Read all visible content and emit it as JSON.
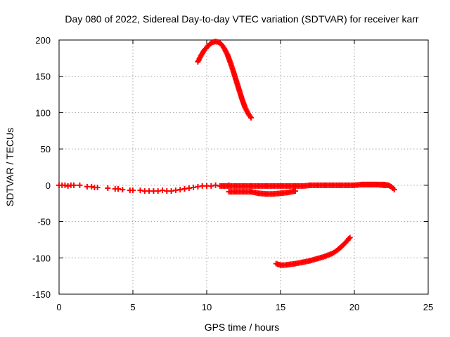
{
  "chart_data": {
    "type": "scatter",
    "title": "Day 080 of 2022, Sidereal Day-to-day VTEC variation (SDTVAR) for receiver karr",
    "xlabel": "GPS time / hours",
    "ylabel": "SDTVAR / TECUs",
    "xlim": [
      0,
      25
    ],
    "ylim": [
      -150,
      200
    ],
    "xticks": [
      0,
      5,
      10,
      15,
      20,
      25
    ],
    "yticks": [
      -150,
      -100,
      -50,
      0,
      50,
      100,
      150,
      200
    ],
    "grid": true,
    "marker": "+",
    "color": "#ff0000",
    "series": [
      {
        "name": "arc-near-zero-early",
        "x": [
          0.0,
          0.2,
          0.4,
          0.6,
          0.8,
          1.0,
          1.4,
          1.9,
          2.2,
          2.4,
          2.6,
          3.3,
          3.8,
          4.0,
          4.3,
          4.8,
          5.0,
          5.5,
          5.8,
          6.1,
          6.4,
          6.7,
          7.0,
          7.3,
          7.6,
          7.9,
          8.2,
          8.5,
          8.8,
          9.1,
          9.4,
          9.7,
          10.0,
          10.3,
          10.6,
          10.9,
          11.2,
          11.5
        ],
        "y": [
          0,
          0,
          0,
          -1,
          0,
          0,
          0,
          -2,
          -2,
          -3,
          -3,
          -4,
          -5,
          -5,
          -6,
          -7,
          -7,
          -7,
          -8,
          -8,
          -8,
          -8,
          -7,
          -8,
          -8,
          -7,
          -6,
          -5,
          -4,
          -3,
          -2,
          -1,
          -1,
          -1,
          0,
          -1,
          -1,
          0
        ]
      },
      {
        "name": "arc-near-zero-mid",
        "x": [
          11.0,
          11.4,
          11.8,
          12.2,
          12.6,
          13.0,
          13.4,
          13.8,
          14.2,
          14.6,
          15.0,
          15.4,
          15.8,
          16.2,
          16.6,
          17.0,
          17.5,
          18.0,
          18.5,
          19.0,
          19.5,
          20.0,
          20.5,
          21.0,
          21.5,
          22.0,
          22.3
        ],
        "y": [
          -1,
          -1,
          -1,
          -1,
          -1,
          -1,
          -1,
          -1,
          -1,
          -1,
          -1,
          -1,
          -1,
          -1,
          -1,
          0,
          0,
          0,
          0,
          0,
          0,
          0,
          1,
          1,
          1,
          0,
          0
        ]
      },
      {
        "name": "arc-near-zero-late",
        "x": [
          20.5,
          21.0,
          21.5,
          22.0,
          22.3,
          22.5,
          22.6,
          22.7
        ],
        "y": [
          1,
          1,
          1,
          1,
          0,
          -2,
          -4,
          -6
        ]
      },
      {
        "name": "arc-dip",
        "x": [
          11.5,
          12.0,
          12.5,
          13.0,
          13.5,
          14.0,
          14.5,
          15.0,
          15.5,
          16.0
        ],
        "y": [
          -9,
          -9,
          -9,
          -9,
          -11,
          -12,
          -12,
          -11,
          -10,
          -8
        ]
      },
      {
        "name": "arc-high",
        "x": [
          9.4,
          9.6,
          9.8,
          10.0,
          10.2,
          10.4,
          10.6,
          10.8,
          11.0,
          11.2,
          11.4,
          11.6,
          11.8,
          12.0,
          12.2,
          12.4,
          12.6,
          12.8,
          13.0
        ],
        "y": [
          170,
          178,
          185,
          190,
          194,
          197,
          198,
          197,
          194,
          188,
          180,
          169,
          157,
          144,
          131,
          118,
          107,
          99,
          93
        ]
      },
      {
        "name": "arc-low",
        "x": [
          14.7,
          15.0,
          15.3,
          15.6,
          16.0,
          16.5,
          17.0,
          17.5,
          18.0,
          18.5,
          18.8,
          19.1,
          19.4,
          19.7
        ],
        "y": [
          -108,
          -110,
          -110,
          -109,
          -108,
          -106,
          -104,
          -101,
          -98,
          -94,
          -90,
          -85,
          -79,
          -72
        ]
      }
    ]
  }
}
